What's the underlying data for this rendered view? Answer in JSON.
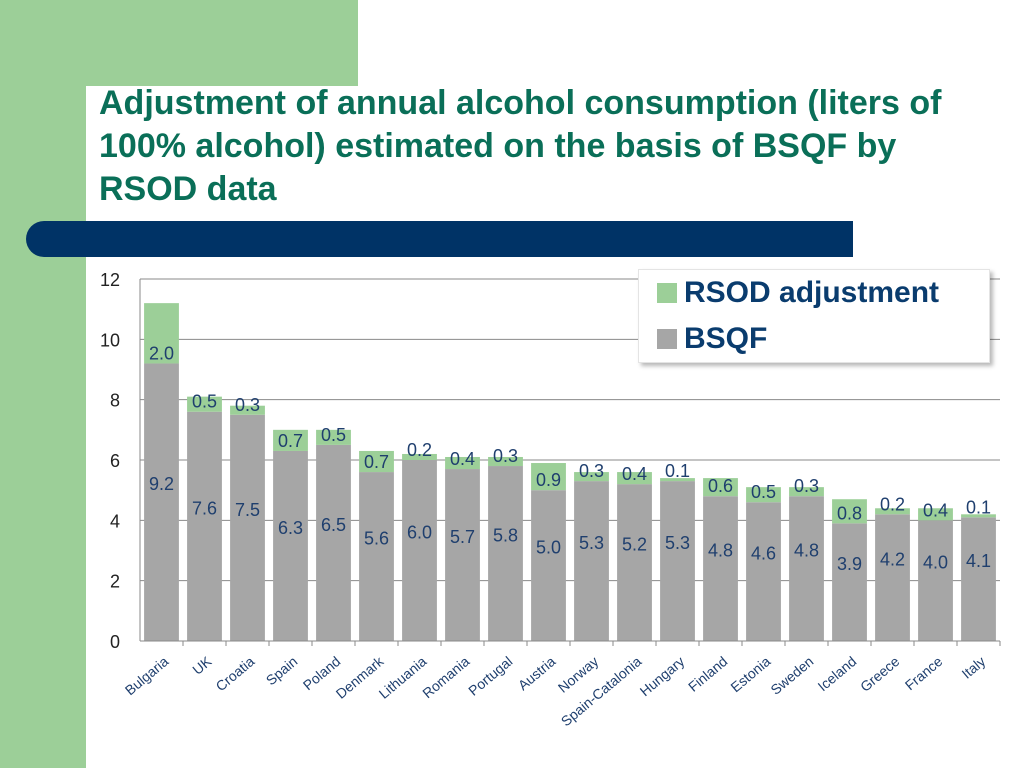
{
  "slide": {
    "title": "Adjustment of annual  alcohol consumption (liters of 100% alcohol) estimated on the basis of BSQF by RSOD data",
    "colors": {
      "green": "#9ccf98",
      "navy": "#003366",
      "title": "#0a6f58"
    }
  },
  "legend": {
    "items": [
      {
        "label": "RSOD adjustment",
        "color": "#9ccf98"
      },
      {
        "label": "BSQF",
        "color": "#a6a6a6"
      }
    ]
  },
  "chart_data": {
    "type": "bar",
    "stacked": true,
    "title": "Adjustment of annual  alcohol consumption (liters of 100% alcohol) estimated on the basis of BSQF by RSOD data",
    "categories": [
      "Bulgaria",
      "UK",
      "Croatia",
      "Spain",
      "Poland",
      "Denmark",
      "Lithuania",
      "Romania",
      "Portugal",
      "Austria",
      "Norway",
      "Spain-Catalonia",
      "Hungary",
      "Finland",
      "Estonia",
      "Sweden",
      "Iceland",
      "Greece",
      "France",
      "Italy"
    ],
    "series": [
      {
        "name": "BSQF",
        "color": "#a6a6a6",
        "values": [
          9.2,
          7.6,
          7.5,
          6.3,
          6.5,
          5.6,
          6.0,
          5.7,
          5.8,
          5.0,
          5.3,
          5.2,
          5.3,
          4.8,
          4.6,
          4.8,
          3.9,
          4.2,
          4.0,
          4.1
        ],
        "labels": [
          "9.2",
          "7.6",
          "7.5",
          "6.3",
          "6.5",
          "5.6",
          "6.0",
          "5.7",
          "5.8",
          "5.0",
          "5.3",
          "5.2",
          "5.3",
          "4.8",
          "4.6",
          "4.8",
          "3.9",
          "4.2",
          "4.0",
          "4.1"
        ]
      },
      {
        "name": "RSOD adjustment",
        "color": "#9ccf98",
        "values": [
          2.0,
          0.5,
          0.3,
          0.7,
          0.5,
          0.7,
          0.2,
          0.4,
          0.3,
          0.9,
          0.3,
          0.4,
          0.1,
          0.6,
          0.5,
          0.3,
          0.8,
          0.2,
          0.4,
          0.1
        ],
        "labels": [
          "2.0",
          "0.5",
          "0.3",
          "0.7",
          "0.5",
          "0.7",
          "0.2",
          "0.4",
          "0.3",
          "0.9",
          "0.3",
          "0.4",
          "0.1",
          "0.6",
          "0.5",
          "0.3",
          "0.8",
          "0.2",
          "0.4",
          "0.1"
        ]
      }
    ],
    "ylim": [
      0,
      12
    ],
    "yticks": [
      "0",
      "2",
      "4",
      "6",
      "8",
      "10",
      "12"
    ],
    "grid": true,
    "xlabel": "",
    "ylabel": "",
    "legend_position": "top-right"
  }
}
